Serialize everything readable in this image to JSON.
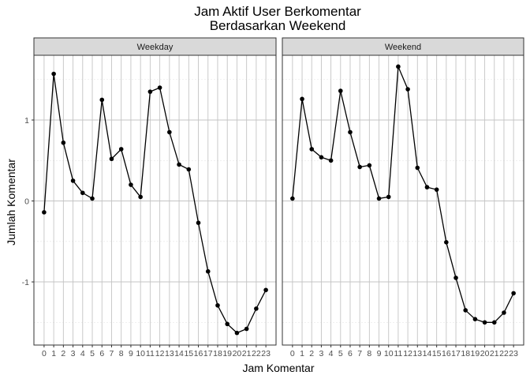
{
  "chart_data": {
    "type": "line",
    "title_line1": "Jam Aktif User Berkomentar",
    "title_line2": "Berdasarkan Weekend",
    "xlabel": "Jam Komentar",
    "ylabel": "Jumlah Komentar",
    "x": [
      0,
      1,
      2,
      3,
      4,
      5,
      6,
      7,
      8,
      9,
      10,
      11,
      12,
      13,
      14,
      15,
      16,
      17,
      18,
      19,
      20,
      21,
      22,
      23
    ],
    "x_tick_labels": [
      "0",
      "1",
      "2",
      "3",
      "4",
      "5",
      "6",
      "7",
      "8",
      "9",
      "10",
      "11",
      "12",
      "13",
      "14",
      "15",
      "16",
      "17",
      "18",
      "19",
      "20",
      "21",
      "22",
      "23"
    ],
    "y_ticks": [
      1,
      0,
      -1
    ],
    "y_tick_labels": [
      "1",
      "0",
      "-1"
    ],
    "ylim": [
      -1.78,
      1.8
    ],
    "grid": true,
    "facets": [
      {
        "name": "Weekday",
        "values": [
          -0.14,
          1.57,
          0.72,
          0.25,
          0.1,
          0.03,
          1.25,
          0.52,
          0.64,
          0.2,
          0.05,
          1.35,
          1.4,
          0.85,
          0.45,
          0.39,
          -0.27,
          -0.87,
          -1.29,
          -1.52,
          -1.63,
          -1.58,
          -1.33,
          -1.1
        ]
      },
      {
        "name": "Weekend",
        "values": [
          0.03,
          1.26,
          0.64,
          0.54,
          0.5,
          1.36,
          0.85,
          0.42,
          0.44,
          0.03,
          0.05,
          1.66,
          1.38,
          0.41,
          0.17,
          0.14,
          -0.51,
          -0.95,
          -1.35,
          -1.46,
          -1.5,
          -1.5,
          -1.38,
          -1.14
        ]
      }
    ]
  }
}
